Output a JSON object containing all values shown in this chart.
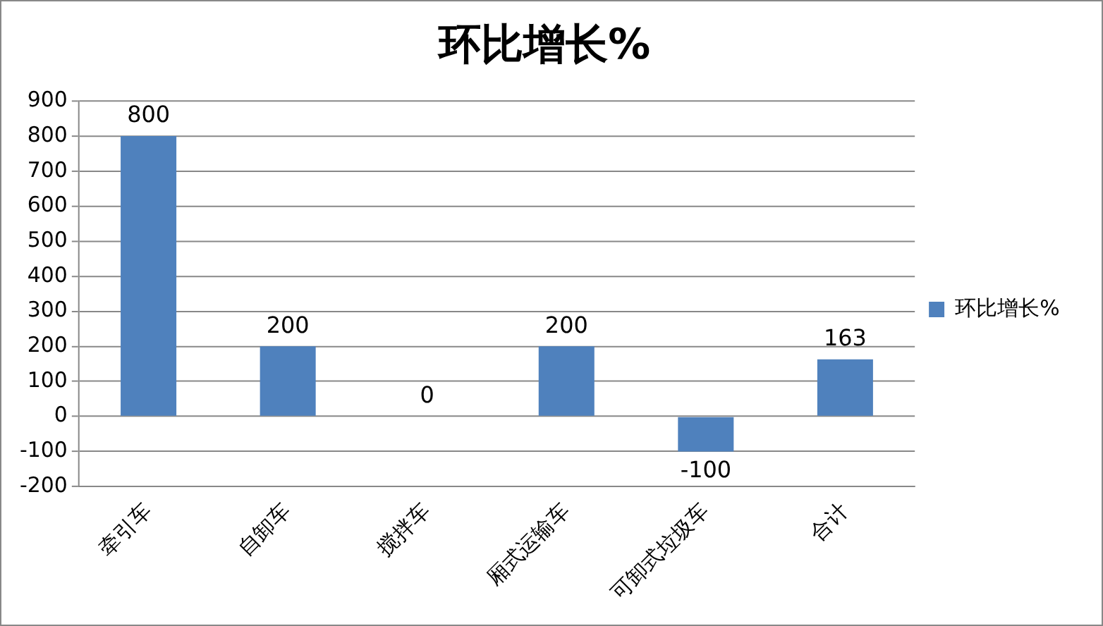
{
  "chart_data": {
    "type": "bar",
    "title": "环比增长%",
    "categories": [
      "牵引车",
      "自卸车",
      "搅拌车",
      "厢式运输车",
      "可卸式垃圾车",
      "合计"
    ],
    "series": [
      {
        "name": "环比增长%",
        "color": "#4f81bd",
        "values": [
          800,
          200,
          0,
          200,
          -100,
          163
        ]
      }
    ],
    "ylim": [
      -200,
      900
    ],
    "yticks": [
      -200,
      -100,
      0,
      100,
      200,
      300,
      400,
      500,
      600,
      700,
      800,
      900
    ],
    "grid": "y",
    "legend": "right",
    "data_labels": true
  }
}
